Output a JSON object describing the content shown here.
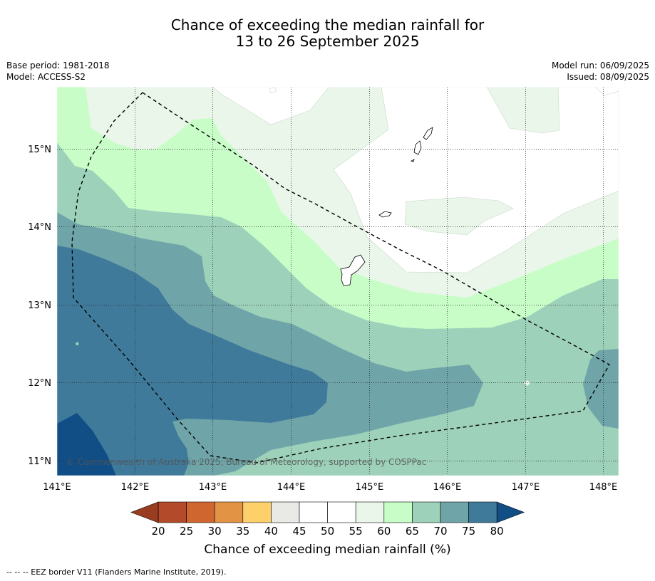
{
  "title": {
    "line1": "Chance of exceeding the median rainfall for",
    "line2": "13 to 26 September 2025"
  },
  "meta": {
    "base_period": "Base period: 1981-2018",
    "model": "Model: ACCESS-S2",
    "model_run": "Model run: 06/09/2025",
    "issued": "Issued: 08/09/2025"
  },
  "map": {
    "lon_range": [
      141,
      148.2
    ],
    "lat_range": [
      10.8,
      15.8
    ],
    "lon_ticks": [
      "141°E",
      "142°E",
      "143°E",
      "144°E",
      "145°E",
      "146°E",
      "147°E",
      "148°E"
    ],
    "lat_ticks": [
      "11°N",
      "12°N",
      "13°N",
      "14°N",
      "15°N"
    ],
    "copyright": "© Commonwealth of Australia 2025, Bureau of Meteorology, supported by COSPPac"
  },
  "colorbar": {
    "labels": [
      "20",
      "25",
      "30",
      "35",
      "40",
      "45",
      "50",
      "55",
      "60",
      "65",
      "70",
      "75",
      "80"
    ],
    "colors": [
      "#b34a2a",
      "#d0662f",
      "#e29444",
      "#fdd06a",
      "#e9e9e5",
      "#ffffff",
      "#ffffff",
      "#eaf6ea",
      "#c8fdc8",
      "#9dd1ba",
      "#6fa5a8",
      "#407a9b"
    ],
    "low_extend_color": "#9a3c20",
    "high_extend_color": "#124e86",
    "title": "Chance of exceeding median rainfall (%)"
  },
  "legend": {
    "eez": "--  --  -- EEZ border V11 (Flanders Marine Institute, 2019)."
  }
}
